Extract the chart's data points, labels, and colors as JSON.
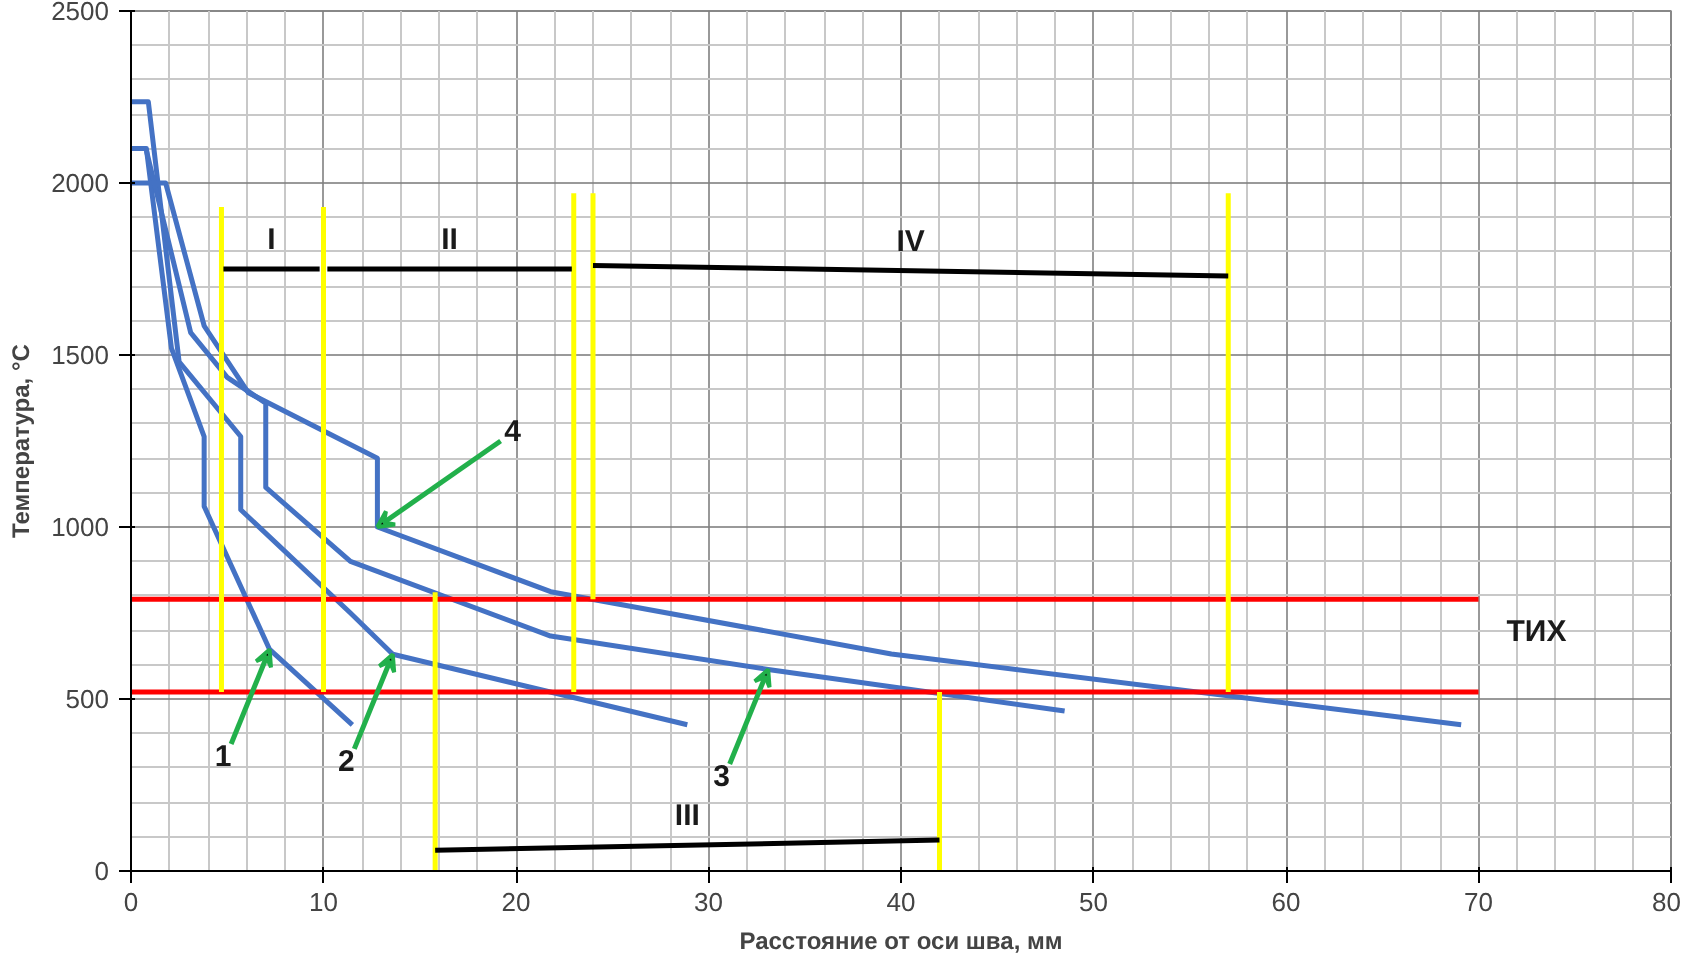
{
  "chart_data": {
    "type": "line",
    "xlabel": "Расстояние от оси шва, мм",
    "ylabel": "Температура, °С",
    "xlim": [
      0,
      80
    ],
    "ylim": [
      0,
      2500
    ],
    "xticks": [
      0,
      10,
      20,
      30,
      40,
      50,
      60,
      70,
      80
    ],
    "yticks": [
      0,
      500,
      1000,
      1500,
      2000,
      2500
    ],
    "grid": true,
    "series": [
      {
        "color": "#4472c4",
        "x": [
          0,
          0.8,
          2.1,
          3.8,
          3.8,
          7.2,
          11.5
        ],
        "values": [
          2100,
          2100,
          1520,
          1263,
          1060,
          644,
          425
        ]
      },
      {
        "color": "#4472c4",
        "x": [
          0,
          0.9,
          2.5,
          5.7,
          5.7,
          11.4,
          13.6,
          28.9
        ],
        "values": [
          2236,
          2236,
          1480,
          1263,
          1050,
          750,
          630,
          425
        ]
      },
      {
        "color": "#4472c4",
        "x": [
          0.8,
          3.1,
          5,
          7,
          7,
          11.4,
          21.8,
          33.1,
          48.5
        ],
        "values": [
          2094,
          1565,
          1435,
          1360,
          1115,
          900,
          683,
          586,
          465
        ]
      },
      {
        "color": "#4472c4",
        "x": [
          0,
          1.8,
          3.8,
          6.1,
          12.8,
          12.8,
          21.8,
          39.5,
          69.1
        ],
        "values": [
          2000,
          2000,
          1585,
          1390,
          1200,
          1000,
          812,
          631,
          425
        ]
      },
      {
        "color": "#ff0000",
        "x": [
          0,
          70
        ],
        "values": [
          790,
          790
        ]
      },
      {
        "color": "#ff0000",
        "x": [
          0,
          70
        ],
        "values": [
          520,
          520
        ]
      },
      {
        "color": "#ffff00",
        "x": [
          4.7,
          4.7
        ],
        "values": [
          1930,
          520
        ]
      },
      {
        "color": "#ffff00",
        "x": [
          10,
          10
        ],
        "values": [
          1930,
          520
        ]
      },
      {
        "color": "#ffff00",
        "x": [
          23,
          23
        ],
        "values": [
          1970,
          520
        ]
      },
      {
        "color": "#ffff00",
        "x": [
          24,
          24
        ],
        "values": [
          1970,
          790
        ]
      },
      {
        "color": "#ffff00",
        "x": [
          57,
          57
        ],
        "values": [
          1970,
          520
        ]
      },
      {
        "color": "#ffff00",
        "x": [
          15.8,
          15.8
        ],
        "values": [
          810,
          0
        ]
      },
      {
        "color": "#ffff00",
        "x": [
          42,
          42
        ],
        "values": [
          520,
          0
        ]
      },
      {
        "color": "#000000",
        "x": [
          4.8,
          9.8
        ],
        "values": [
          1750,
          1750
        ]
      },
      {
        "color": "#000000",
        "x": [
          10.2,
          22.9
        ],
        "values": [
          1750,
          1750
        ]
      },
      {
        "color": "#000000",
        "x": [
          24,
          57
        ],
        "values": [
          1760,
          1730
        ]
      },
      {
        "color": "#000000",
        "x": [
          15.8,
          42
        ],
        "values": [
          60,
          90
        ]
      }
    ],
    "annotations": [
      {
        "text": "I",
        "x": 7.3,
        "y": 1750
      },
      {
        "text": "II",
        "x": 16.55,
        "y": 1750
      },
      {
        "text": "IV",
        "x": 40.5,
        "y": 1745
      },
      {
        "text": "III",
        "x": 28.9,
        "y": 75
      },
      {
        "text": "1",
        "x": 7.2,
        "y": 644
      },
      {
        "text": "2",
        "x": 13.6,
        "y": 630
      },
      {
        "text": "3",
        "x": 33.1,
        "y": 586
      },
      {
        "text": "4",
        "x": 12.8,
        "y": 1000
      },
      {
        "text": "ТИХ",
        "x": 70,
        "y": 790
      }
    ]
  }
}
